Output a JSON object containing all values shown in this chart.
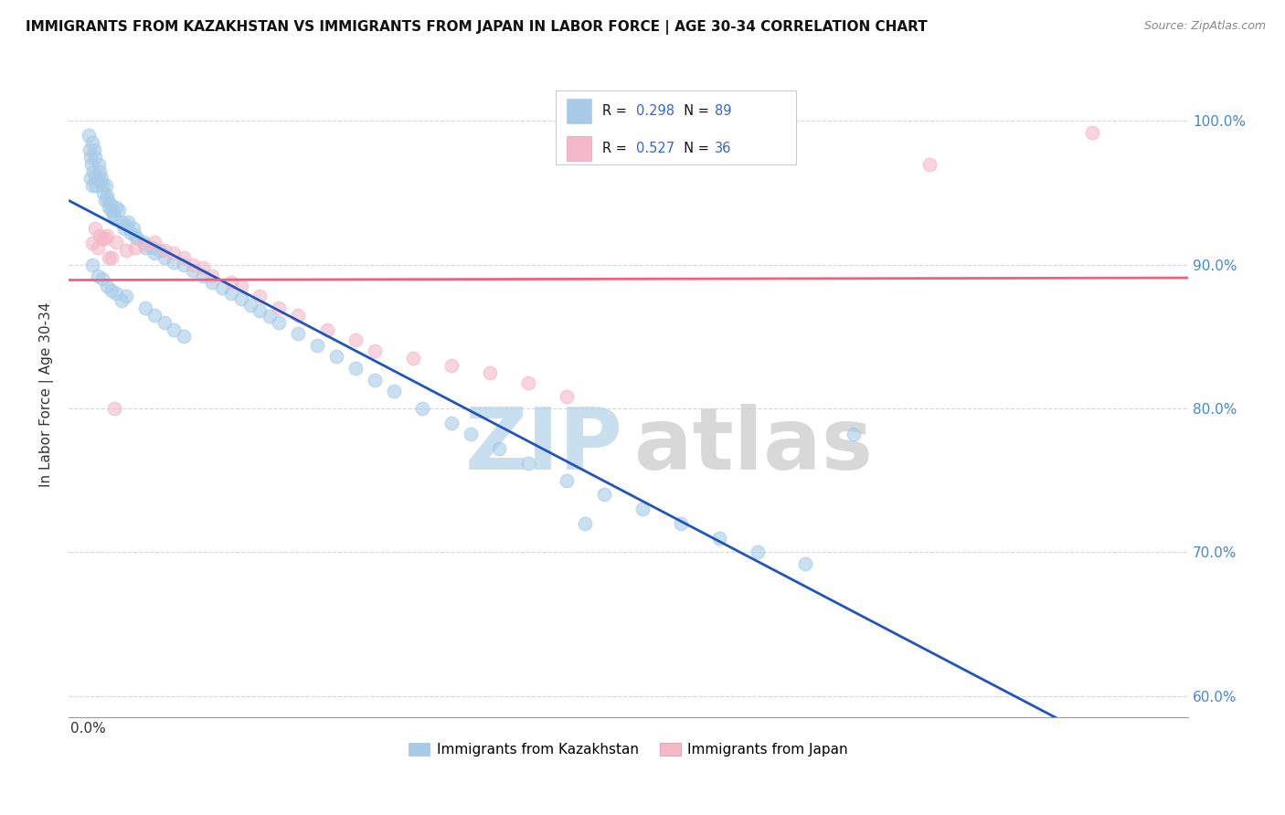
{
  "title": "IMMIGRANTS FROM KAZAKHSTAN VS IMMIGRANTS FROM JAPAN IN LABOR FORCE | AGE 30-34 CORRELATION CHART",
  "source": "Source: ZipAtlas.com",
  "ylabel": "In Labor Force | Age 30-34",
  "r_kazakhstan": 0.298,
  "n_kazakhstan": 89,
  "r_japan": 0.527,
  "n_japan": 36,
  "color_kazakhstan": "#a8cce8",
  "color_japan": "#f4b8c8",
  "trendline_kazakhstan": "#2255bb",
  "trendline_japan": "#f06080",
  "xlim": [
    -0.002,
    0.115
  ],
  "ylim": [
    0.585,
    1.035
  ],
  "x_ticks": [
    0.0,
    0.02,
    0.04,
    0.06,
    0.08,
    0.1
  ],
  "y_ticks": [
    0.6,
    0.7,
    0.8,
    0.9,
    1.0
  ],
  "y_tick_labels": [
    "60.0%",
    "70.0%",
    "80.0%",
    "90.0%",
    "100.0%"
  ],
  "watermark_zip_color": "#c8dff0",
  "watermark_atlas_color": "#d8d8d8",
  "kazakhstan_x": [
    0.0003,
    0.0005,
    0.0002,
    0.0004,
    0.0006,
    0.0001,
    0.0003,
    0.0005,
    0.0008,
    0.0009,
    0.001,
    0.0012,
    0.0011,
    0.0013,
    0.0008,
    0.0007,
    0.0015,
    0.0014,
    0.0016,
    0.0018,
    0.002,
    0.0019,
    0.0022,
    0.0021,
    0.0025,
    0.0024,
    0.0027,
    0.003,
    0.0028,
    0.0032,
    0.0035,
    0.004,
    0.0038,
    0.0042,
    0.0045,
    0.005,
    0.0048,
    0.0052,
    0.006,
    0.0058,
    0.007,
    0.0068,
    0.008,
    0.0075,
    0.009,
    0.01,
    0.011,
    0.012,
    0.013,
    0.014,
    0.015,
    0.016,
    0.017,
    0.018,
    0.019,
    0.02,
    0.022,
    0.024,
    0.026,
    0.028,
    0.03,
    0.032,
    0.035,
    0.038,
    0.04,
    0.043,
    0.046,
    0.05,
    0.054,
    0.058,
    0.062,
    0.066,
    0.07,
    0.075,
    0.08,
    0.002,
    0.003,
    0.004,
    0.001,
    0.0005,
    0.006,
    0.007,
    0.008,
    0.009,
    0.01,
    0.0015,
    0.0025,
    0.0035,
    0.052
  ],
  "kazakhstan_y": [
    0.975,
    0.985,
    0.98,
    0.97,
    0.965,
    0.99,
    0.96,
    0.955,
    0.96,
    0.955,
    0.96,
    0.965,
    0.97,
    0.958,
    0.975,
    0.98,
    0.955,
    0.96,
    0.95,
    0.945,
    0.948,
    0.955,
    0.94,
    0.945,
    0.938,
    0.942,
    0.935,
    0.94,
    0.932,
    0.938,
    0.93,
    0.928,
    0.925,
    0.93,
    0.922,
    0.92,
    0.925,
    0.918,
    0.912,
    0.916,
    0.908,
    0.912,
    0.905,
    0.91,
    0.902,
    0.9,
    0.896,
    0.892,
    0.888,
    0.884,
    0.88,
    0.876,
    0.872,
    0.868,
    0.864,
    0.86,
    0.852,
    0.844,
    0.836,
    0.828,
    0.82,
    0.812,
    0.8,
    0.79,
    0.782,
    0.772,
    0.762,
    0.75,
    0.74,
    0.73,
    0.72,
    0.71,
    0.7,
    0.692,
    0.782,
    0.885,
    0.88,
    0.878,
    0.892,
    0.9,
    0.87,
    0.865,
    0.86,
    0.855,
    0.85,
    0.89,
    0.882,
    0.875,
    0.72
  ],
  "japan_x": [
    0.0005,
    0.001,
    0.0015,
    0.002,
    0.0025,
    0.003,
    0.004,
    0.005,
    0.006,
    0.007,
    0.008,
    0.009,
    0.01,
    0.011,
    0.012,
    0.013,
    0.015,
    0.016,
    0.018,
    0.02,
    0.022,
    0.025,
    0.028,
    0.03,
    0.034,
    0.038,
    0.042,
    0.046,
    0.05,
    0.0008,
    0.0012,
    0.0018,
    0.0022,
    0.0028,
    0.088,
    0.105
  ],
  "japan_y": [
    0.915,
    0.912,
    0.918,
    0.92,
    0.905,
    0.916,
    0.91,
    0.912,
    0.914,
    0.916,
    0.91,
    0.908,
    0.905,
    0.9,
    0.898,
    0.892,
    0.888,
    0.885,
    0.878,
    0.87,
    0.865,
    0.855,
    0.848,
    0.84,
    0.835,
    0.83,
    0.825,
    0.818,
    0.808,
    0.925,
    0.92,
    0.918,
    0.905,
    0.8,
    0.97,
    0.992
  ]
}
